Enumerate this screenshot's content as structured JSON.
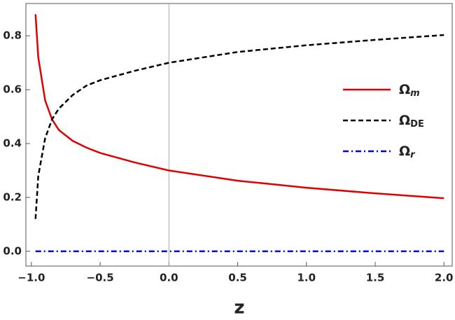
{
  "chart_data": {
    "type": "line",
    "x_label": "z",
    "x": [
      -0.97,
      -0.95,
      -0.9,
      -0.85,
      -0.8,
      -0.7,
      -0.6,
      -0.5,
      -0.25,
      0,
      0.5,
      1,
      1.5,
      2
    ],
    "series": [
      {
        "name": "Ωm",
        "color": "#e00000",
        "dash": "solid",
        "values": [
          0.88,
          0.72,
          0.56,
          0.49,
          0.45,
          0.41,
          0.385,
          0.365,
          0.33,
          0.3,
          0.262,
          0.236,
          0.215,
          0.197
        ]
      },
      {
        "name": "ΩDE",
        "color": "#000000",
        "dash": "dashed",
        "values": [
          0.12,
          0.28,
          0.42,
          0.49,
          0.53,
          0.58,
          0.615,
          0.635,
          0.67,
          0.7,
          0.74,
          0.765,
          0.785,
          0.803
        ]
      },
      {
        "name": "Ωr",
        "color": "#0000ee",
        "dash": "dashdot",
        "values": [
          0,
          0,
          0,
          0,
          0,
          0,
          0,
          0,
          0,
          0,
          0,
          0,
          0,
          0
        ]
      }
    ],
    "xlim": [
      -1.04,
      2.06
    ],
    "ylim": [
      -0.055,
      0.92
    ],
    "xticks": [
      {
        "value": -1,
        "label": "−1.0"
      },
      {
        "value": -0.5,
        "label": "−0.5"
      },
      {
        "value": 0,
        "label": "0.0"
      },
      0.5,
      {
        "value": 1,
        "label": "1.0"
      },
      1.5,
      {
        "value": 2,
        "label": "2.0"
      }
    ],
    "yticks": [
      {
        "value": 0,
        "label": "0.0"
      },
      0.2,
      0.4,
      0.6,
      0.8
    ],
    "legend": "right"
  }
}
